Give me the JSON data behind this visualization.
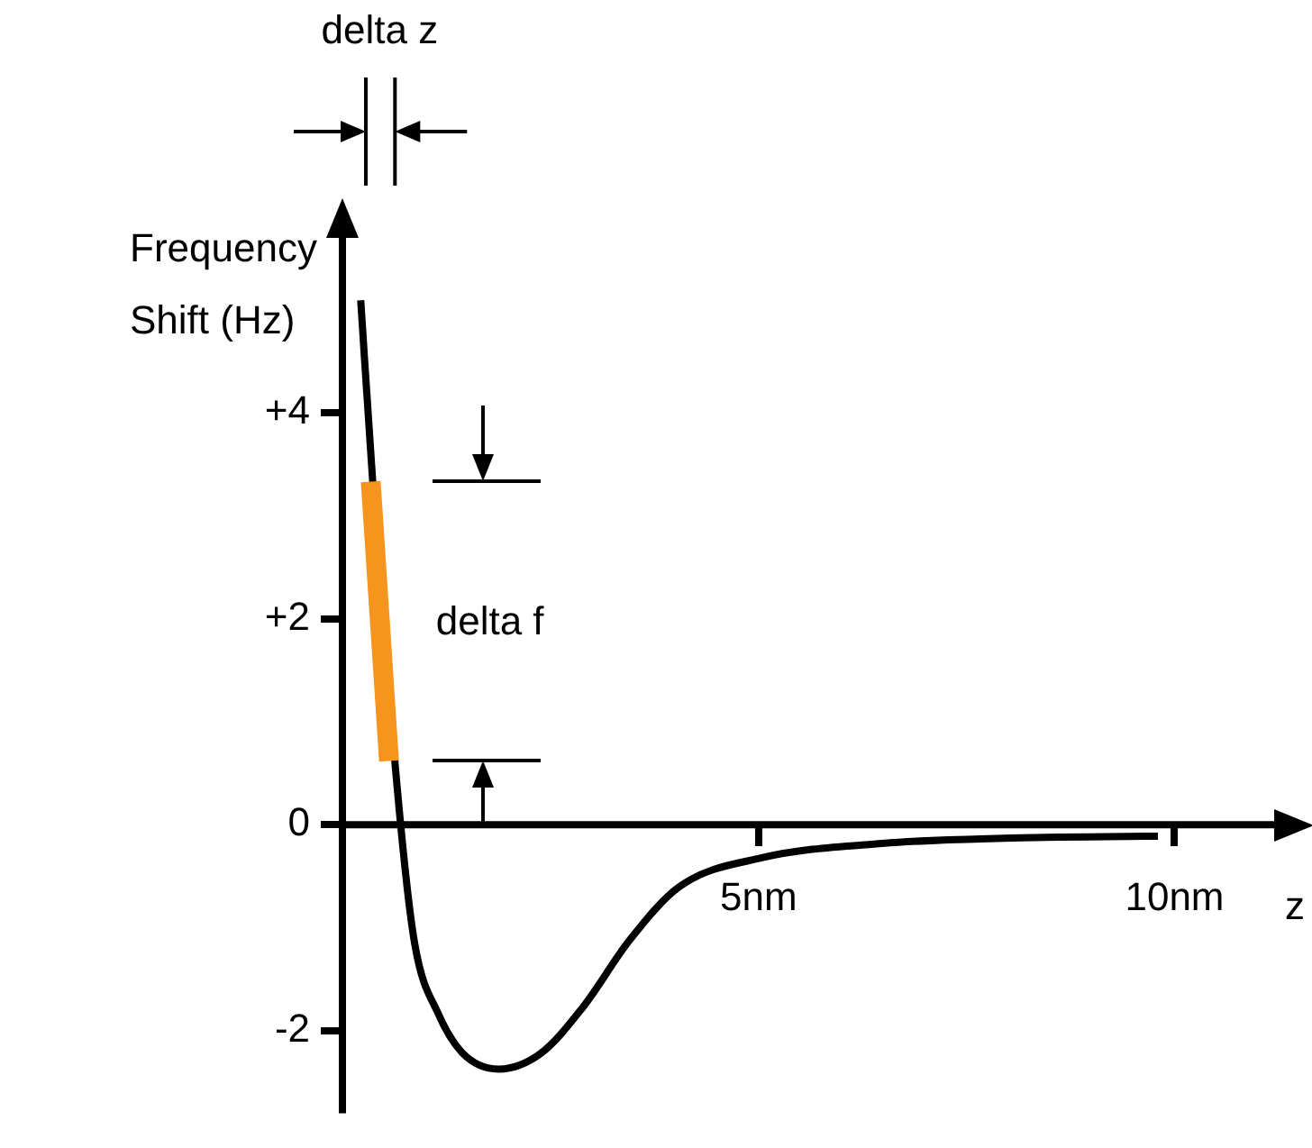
{
  "chart_data": {
    "type": "line",
    "ylabel": "Frequency Shift (Hz)",
    "xlabel": "z",
    "xlim": [
      0,
      11.5
    ],
    "ylim": [
      -2.8,
      5.8
    ],
    "xticks": [
      {
        "value": 5,
        "label": "5nm"
      },
      {
        "value": 10,
        "label": "10nm"
      }
    ],
    "yticks": [
      {
        "value": -2,
        "label": "-2"
      },
      {
        "value": 0,
        "label": "0"
      },
      {
        "value": 2,
        "label": "+2"
      },
      {
        "value": 4,
        "label": "+4"
      }
    ],
    "series": [
      {
        "color": "#000000",
        "x": [
          0.22,
          0.36,
          0.7,
          0.87,
          1.15,
          1.45,
          1.88,
          2.38,
          2.88,
          3.46,
          4.05,
          5.04,
          6.49,
          7.94,
          9.8
        ],
        "values": [
          5.09,
          3.38,
          0,
          -1.16,
          -1.83,
          -2.22,
          -2.37,
          -2.22,
          -1.78,
          -1.11,
          -0.6,
          -0.32,
          -0.18,
          -0.13,
          -0.11
        ]
      },
      {
        "color": "#f7941d",
        "x": [
          0.34,
          0.56
        ],
        "values": [
          3.33,
          0.62
        ]
      }
    ],
    "annotations": [
      "delta z",
      "delta f"
    ],
    "grid": false,
    "legend": false
  }
}
